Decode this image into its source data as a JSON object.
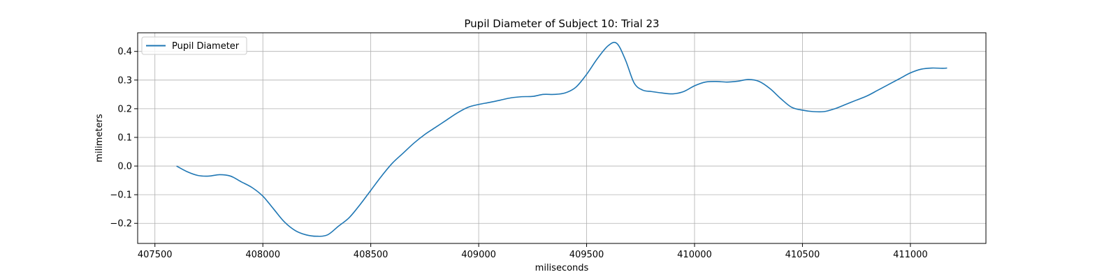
{
  "chart_data": {
    "type": "line",
    "title": "Pupil Diameter of Subject 10: Trial 23",
    "xlabel": "miliseconds",
    "ylabel": "milimeters",
    "xlim": [
      407420,
      411350
    ],
    "ylim": [
      -0.27,
      0.465
    ],
    "xticks": [
      407500,
      408000,
      408500,
      409000,
      409500,
      410000,
      410500,
      411000
    ],
    "xtick_labels": [
      "407500",
      "408000",
      "408500",
      "409000",
      "409500",
      "410000",
      "410500",
      "411000"
    ],
    "yticks": [
      -0.2,
      -0.1,
      0.0,
      0.1,
      0.2,
      0.3,
      0.4
    ],
    "ytick_labels": [
      "−0.2",
      "−0.1",
      "0.0",
      "0.1",
      "0.2",
      "0.3",
      "0.4"
    ],
    "grid": true,
    "legend_position": "upper-left",
    "color": "#1f77b4",
    "series": [
      {
        "name": "Pupil Diameter",
        "x": [
          407600,
          407650,
          407700,
          407750,
          407800,
          407850,
          407900,
          407950,
          408000,
          408050,
          408100,
          408150,
          408200,
          408250,
          408300,
          408350,
          408400,
          408450,
          408500,
          408550,
          408600,
          408650,
          408700,
          408750,
          408800,
          408850,
          408900,
          408950,
          409000,
          409050,
          409100,
          409150,
          409200,
          409250,
          409300,
          409350,
          409400,
          409450,
          409500,
          409550,
          409600,
          409640,
          409680,
          409720,
          409760,
          409800,
          409850,
          409900,
          409950,
          410000,
          410050,
          410100,
          410150,
          410200,
          410250,
          410300,
          410350,
          410400,
          410450,
          410500,
          410550,
          410600,
          410650,
          410700,
          410750,
          410800,
          410850,
          410900,
          410950,
          411000,
          411050,
          411100,
          411150,
          411170
        ],
        "y": [
          0.0,
          -0.02,
          -0.033,
          -0.035,
          -0.03,
          -0.035,
          -0.055,
          -0.075,
          -0.105,
          -0.15,
          -0.195,
          -0.225,
          -0.24,
          -0.245,
          -0.24,
          -0.21,
          -0.18,
          -0.135,
          -0.085,
          -0.035,
          0.01,
          0.045,
          0.08,
          0.11,
          0.135,
          0.16,
          0.185,
          0.205,
          0.215,
          0.222,
          0.23,
          0.238,
          0.242,
          0.243,
          0.25,
          0.25,
          0.255,
          0.275,
          0.32,
          0.375,
          0.42,
          0.428,
          0.37,
          0.29,
          0.265,
          0.26,
          0.255,
          0.252,
          0.26,
          0.28,
          0.293,
          0.295,
          0.293,
          0.296,
          0.302,
          0.295,
          0.27,
          0.235,
          0.205,
          0.195,
          0.19,
          0.19,
          0.2,
          0.215,
          0.23,
          0.245,
          0.265,
          0.285,
          0.305,
          0.325,
          0.338,
          0.342,
          0.341,
          0.342
        ]
      }
    ]
  }
}
